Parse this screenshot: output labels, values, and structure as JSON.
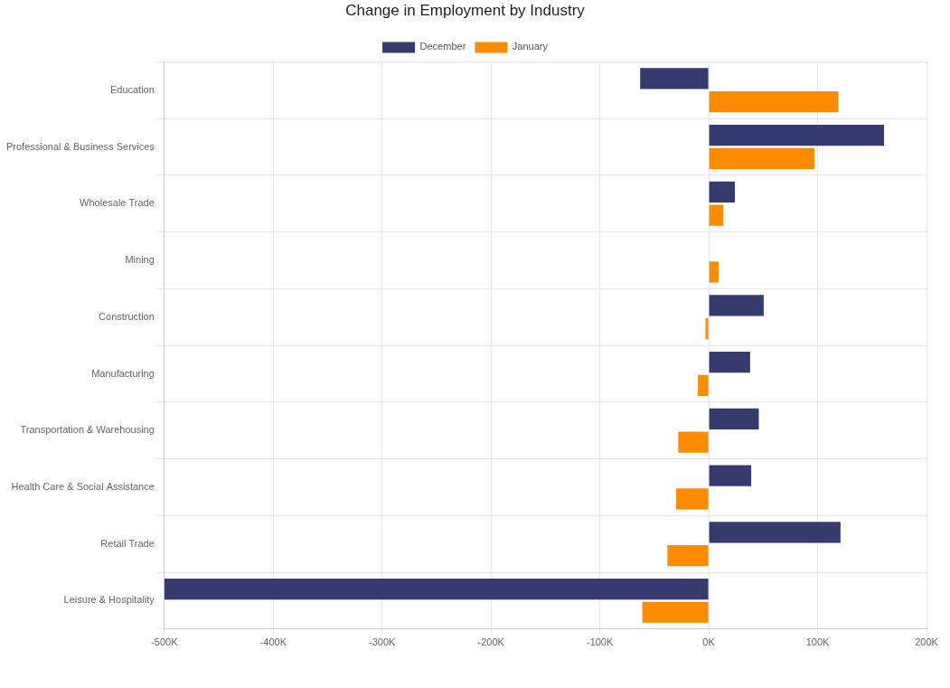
{
  "chart_data": {
    "type": "bar",
    "orientation": "horizontal",
    "title": "Change in Employment by Industry",
    "categories": [
      "Education",
      "Professional & Business Services",
      "Wholesale Trade",
      "Mining",
      "Construction",
      "Manufacturing",
      "Transportation & Warehousing",
      "Health Care & Social Assistance",
      "Retail Trade",
      "Leisure & Hospitality"
    ],
    "series": [
      {
        "name": "December",
        "color": "#363b6f",
        "values": [
          -63000,
          161000,
          24000,
          0,
          50500,
          38000,
          46000,
          39000,
          121000,
          -500000
        ]
      },
      {
        "name": "January",
        "color": "#ff8c00",
        "values": [
          119000,
          97000,
          13500,
          9000,
          -3000,
          -10000,
          -28000,
          -30000,
          -38000,
          -61000
        ]
      }
    ],
    "xlim": [
      -500000,
      200000
    ],
    "xticks": [
      {
        "value": -500000,
        "label": "-500K"
      },
      {
        "value": -400000,
        "label": "-400K"
      },
      {
        "value": -300000,
        "label": "-300K"
      },
      {
        "value": -200000,
        "label": "-200K"
      },
      {
        "value": -100000,
        "label": "-100K"
      },
      {
        "value": 0,
        "label": "0K"
      },
      {
        "value": 100000,
        "label": "100K"
      },
      {
        "value": 200000,
        "label": "200K"
      }
    ],
    "grid": true,
    "legend": "top"
  }
}
